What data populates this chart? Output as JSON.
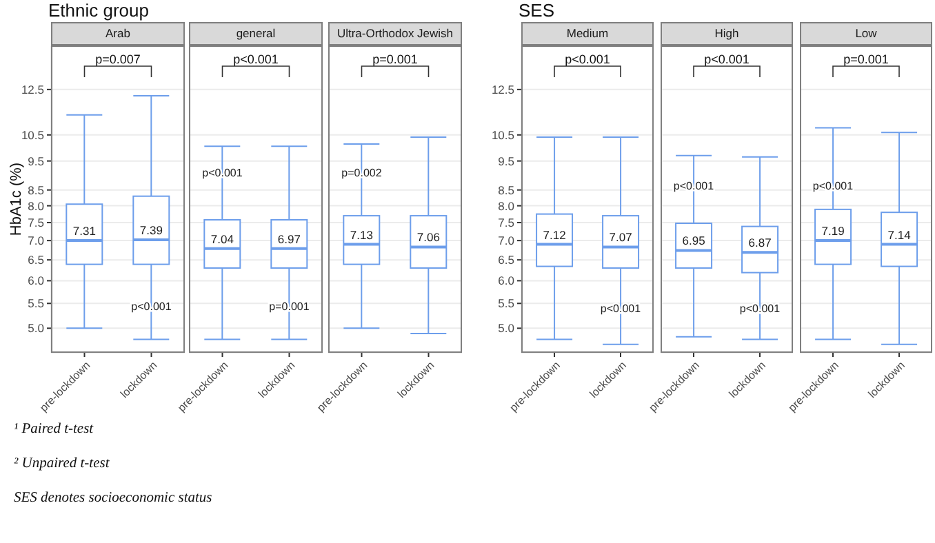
{
  "chart_data": [
    {
      "type": "box",
      "subtitle": "Ethnic group",
      "title": "Arab",
      "ylabel": "HbA1c (%)",
      "categories": [
        "pre-lockdown",
        "lockdown"
      ],
      "log": true,
      "grid": true,
      "ylim": [
        4.55,
        14.8
      ],
      "yticks": [
        {
          "value": 5,
          "label": "5.0"
        },
        5.5,
        {
          "value": 6,
          "label": "6.0"
        },
        6.5,
        {
          "value": 7,
          "label": "7.0"
        },
        7.5,
        {
          "value": 8,
          "label": "8.0"
        },
        8.5,
        9.5,
        10.5,
        12.5
      ],
      "series": [
        {
          "color": "#6d9eeb",
          "value_labels": [
            "7.31",
            "7.39"
          ],
          "boxes": [
            {
              "low": 5.0,
              "q1": 6.39,
              "median": 7.0,
              "q3": 8.05,
              "high": 11.34
            },
            {
              "low": 4.79,
              "q1": 6.39,
              "median": 7.02,
              "q3": 8.3,
              "high": 12.2
            }
          ]
        }
      ],
      "annotations": [
        "p=0.007",
        {
          "text": "p<0.001",
          "x": "lockdown",
          "y": 5.45
        },
        "¹ Paired t-test",
        "² Unpaired t-test",
        "SES denotes socioeconomic status"
      ]
    },
    {
      "type": "box",
      "title": "general",
      "categories": [
        "pre-lockdown",
        "lockdown"
      ],
      "log": true,
      "grid": true,
      "tick_labels": "x",
      "ylim": [
        4.55,
        14.8
      ],
      "yticks": [
        5,
        5.5,
        6,
        6.5,
        7,
        7.5,
        8,
        8.5,
        9.5,
        10.5,
        12.5
      ],
      "series": [
        {
          "color": "#6d9eeb",
          "value_labels": [
            "7.04",
            "6.97"
          ],
          "boxes": [
            {
              "low": 4.79,
              "q1": 6.3,
              "median": 6.79,
              "q3": 7.58,
              "high": 10.05
            },
            {
              "low": 4.79,
              "q1": 6.3,
              "median": 6.79,
              "q3": 7.58,
              "high": 10.05
            }
          ]
        }
      ],
      "annotations": [
        "p<0.001",
        {
          "text": "p<0.001",
          "x": "pre-lockdown",
          "y": 9.1
        },
        {
          "text": "p=0.001",
          "x": "lockdown",
          "y": 5.45
        }
      ]
    },
    {
      "type": "box",
      "title": "Ultra-Orthodox Jewish",
      "categories": [
        "pre-lockdown",
        "lockdown"
      ],
      "log": true,
      "grid": true,
      "tick_labels": "x",
      "ylim": [
        4.55,
        14.8
      ],
      "yticks": [
        5,
        5.5,
        6,
        6.5,
        7,
        7.5,
        8,
        8.5,
        9.5,
        10.5,
        12.5
      ],
      "series": [
        {
          "color": "#6d9eeb",
          "value_labels": [
            "7.13",
            "7.06"
          ],
          "boxes": [
            {
              "low": 5.0,
              "q1": 6.39,
              "median": 6.9,
              "q3": 7.7,
              "high": 10.14
            },
            {
              "low": 4.9,
              "q1": 6.3,
              "median": 6.83,
              "q3": 7.7,
              "high": 10.41
            }
          ]
        }
      ],
      "annotations": [
        "p=0.001",
        {
          "text": "p=0.002",
          "x": "pre-lockdown",
          "y": 9.1
        }
      ]
    },
    {
      "type": "box",
      "subtitle": "SES",
      "title": "Medium",
      "categories": [
        "pre-lockdown",
        "lockdown"
      ],
      "log": true,
      "grid": true,
      "ylim": [
        4.55,
        14.8
      ],
      "yticks": [
        {
          "value": 5,
          "label": "5.0"
        },
        5.5,
        {
          "value": 6,
          "label": "6.0"
        },
        6.5,
        {
          "value": 7,
          "label": "7.0"
        },
        7.5,
        {
          "value": 8,
          "label": "8.0"
        },
        8.5,
        9.5,
        10.5,
        12.5
      ],
      "series": [
        {
          "color": "#6d9eeb",
          "value_labels": [
            "7.12",
            "7.07"
          ],
          "boxes": [
            {
              "low": 4.79,
              "q1": 6.34,
              "median": 6.9,
              "q3": 7.75,
              "high": 10.41
            },
            {
              "low": 4.7,
              "q1": 6.3,
              "median": 6.83,
              "q3": 7.7,
              "high": 10.41
            }
          ]
        }
      ],
      "annotations": [
        "p<0.001",
        {
          "text": "p<0.001",
          "x": "lockdown",
          "y": 5.4
        }
      ]
    },
    {
      "type": "box",
      "title": "High",
      "categories": [
        "pre-lockdown",
        "lockdown"
      ],
      "log": true,
      "grid": true,
      "tick_labels": "x",
      "ylim": [
        4.55,
        14.8
      ],
      "yticks": [
        5,
        5.5,
        6,
        6.5,
        7,
        7.5,
        8,
        8.5,
        9.5,
        10.5,
        12.5
      ],
      "series": [
        {
          "color": "#6d9eeb",
          "value_labels": [
            "6.95",
            "6.87"
          ],
          "boxes": [
            {
              "low": 4.84,
              "q1": 6.3,
              "median": 6.74,
              "q3": 7.48,
              "high": 9.7
            },
            {
              "low": 4.79,
              "q1": 6.19,
              "median": 6.69,
              "q3": 7.39,
              "high": 9.65
            }
          ]
        }
      ],
      "annotations": [
        "p<0.001",
        {
          "text": "p<0.001",
          "x": "pre-lockdown",
          "y": 8.65
        },
        {
          "text": "p<0.001",
          "x": "lockdown",
          "y": 5.4
        }
      ]
    },
    {
      "type": "box",
      "title": "Low",
      "categories": [
        "pre-lockdown",
        "lockdown"
      ],
      "log": true,
      "grid": true,
      "tick_labels": "x",
      "ylim": [
        4.55,
        14.8
      ],
      "yticks": [
        5,
        5.5,
        6,
        6.5,
        7,
        7.5,
        8,
        8.5,
        9.5,
        10.5,
        12.5
      ],
      "series": [
        {
          "color": "#6d9eeb",
          "value_labels": [
            "7.19",
            "7.14"
          ],
          "boxes": [
            {
              "low": 4.79,
              "q1": 6.39,
              "median": 7.0,
              "q3": 7.89,
              "high": 10.79
            },
            {
              "low": 4.7,
              "q1": 6.34,
              "median": 6.9,
              "q3": 7.8,
              "high": 10.6
            }
          ]
        }
      ],
      "annotations": [
        "p=0.001",
        {
          "text": "p<0.001",
          "x": "pre-lockdown",
          "y": 8.65
        }
      ]
    }
  ]
}
